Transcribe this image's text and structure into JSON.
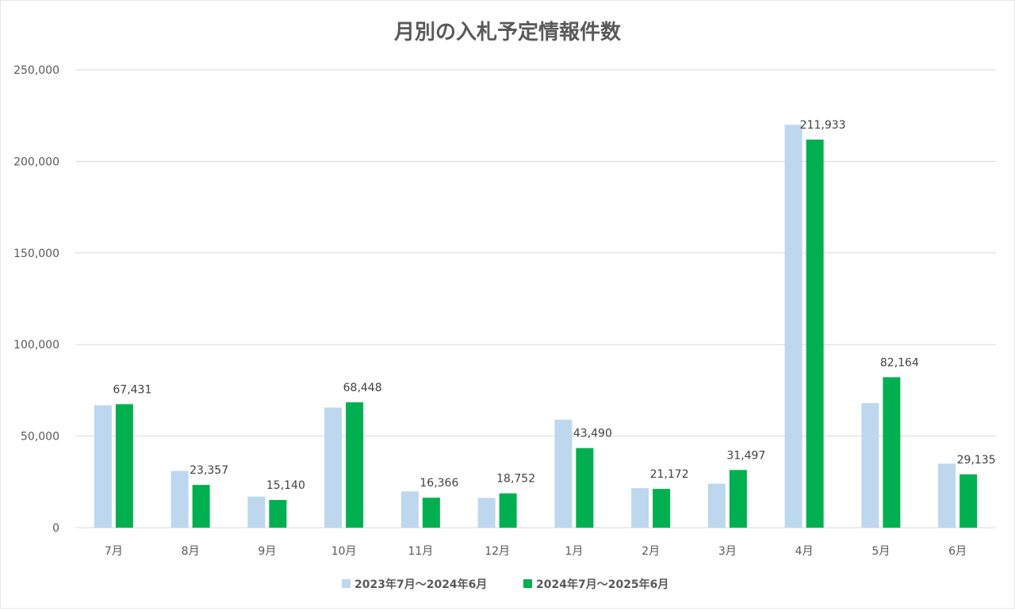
{
  "chart_data": {
    "type": "bar",
    "title": "月別の入札予定情報件数",
    "categories": [
      "7月",
      "8月",
      "9月",
      "10月",
      "11月",
      "12月",
      "1月",
      "2月",
      "3月",
      "4月",
      "5月",
      "6月"
    ],
    "series": [
      {
        "name": "2023年7月～2024年6月",
        "values": [
          66800,
          31000,
          17000,
          65600,
          19800,
          16300,
          59000,
          21600,
          24000,
          220000,
          68000,
          35000
        ],
        "color": "#bdd7ee",
        "labels_shown": false
      },
      {
        "name": "2024年7月～2025年6月",
        "values": [
          67431,
          23357,
          15140,
          68448,
          16366,
          18752,
          43490,
          21172,
          31497,
          211933,
          82164,
          29135
        ],
        "color": "#00b050",
        "labels_shown": true
      }
    ],
    "data_labels": [
      "67,431",
      "23,357",
      "15,140",
      "68,448",
      "16,366",
      "18,752",
      "43,490",
      "21,172",
      "31,497",
      "211,933",
      "82,164",
      "29,135"
    ],
    "y_ticks": [
      0,
      50000,
      100000,
      150000,
      200000,
      250000
    ],
    "y_tick_labels": [
      "0",
      "50,000",
      "100,000",
      "150,000",
      "200,000",
      "250,000"
    ],
    "ylim": [
      0,
      250000
    ],
    "xlabel": "",
    "ylabel": "",
    "grid": true,
    "legend_position": "bottom",
    "colors": {
      "gridline": "#d9d9d9",
      "axis_text": "#595959",
      "title_text": "#595959",
      "label_text": "#404040"
    }
  }
}
